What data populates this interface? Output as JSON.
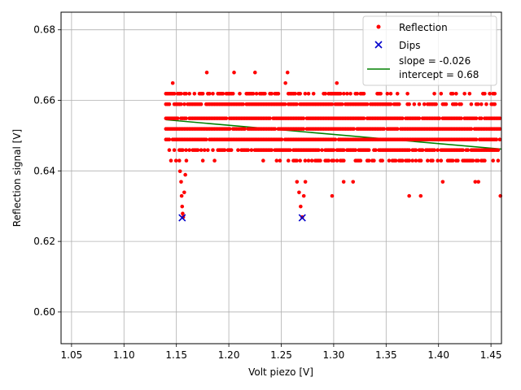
{
  "chart_data": {
    "type": "scatter",
    "title": "",
    "xlabel": "Volt piezo [V]",
    "ylabel": "Reflection signal [V]",
    "xlim": [
      1.04,
      1.46
    ],
    "ylim": [
      0.591,
      0.685
    ],
    "xticks": [
      1.05,
      1.1,
      1.15,
      1.2,
      1.25,
      1.3,
      1.35,
      1.4,
      1.45
    ],
    "xtick_labels": [
      "1.05",
      "1.10",
      "1.15",
      "1.20",
      "1.25",
      "1.30",
      "1.35",
      "1.40",
      "1.45"
    ],
    "yticks": [
      0.6,
      0.62,
      0.64,
      0.66,
      0.68
    ],
    "ytick_labels": [
      "0.60",
      "0.62",
      "0.64",
      "0.66",
      "0.68"
    ],
    "grid": true,
    "legend_position": "top-right",
    "colors": {
      "reflection": "#ff0000",
      "dips": "#0000cc",
      "fit": "#008000"
    },
    "series": [
      {
        "name": "Reflection",
        "kind": "scatter",
        "marker": "dot",
        "x_range": [
          1.14,
          1.46
        ],
        "levels": [
          0.6429,
          0.6459,
          0.6489,
          0.6519,
          0.6549,
          0.6589,
          0.6619
        ],
        "dense_bottom_from": 1.255,
        "dip_points": [
          {
            "x": 1.1535,
            "y": 0.6399
          },
          {
            "x": 1.1545,
            "y": 0.6369
          },
          {
            "x": 1.155,
            "y": 0.6329
          },
          {
            "x": 1.1555,
            "y": 0.6299
          },
          {
            "x": 1.156,
            "y": 0.6279
          },
          {
            "x": 1.1565,
            "y": 0.6269
          },
          {
            "x": 1.1575,
            "y": 0.6339
          },
          {
            "x": 1.1585,
            "y": 0.6389
          },
          {
            "x": 1.1595,
            "y": 0.6429
          },
          {
            "x": 1.265,
            "y": 0.6369
          },
          {
            "x": 1.267,
            "y": 0.6339
          },
          {
            "x": 1.2685,
            "y": 0.6299
          },
          {
            "x": 1.27,
            "y": 0.6269
          },
          {
            "x": 1.2715,
            "y": 0.6329
          },
          {
            "x": 1.273,
            "y": 0.6369
          },
          {
            "x": 1.2985,
            "y": 0.6329
          },
          {
            "x": 1.3095,
            "y": 0.6369
          },
          {
            "x": 1.3185,
            "y": 0.6369
          },
          {
            "x": 1.372,
            "y": 0.6329
          },
          {
            "x": 1.383,
            "y": 0.6329
          },
          {
            "x": 1.404,
            "y": 0.6369
          },
          {
            "x": 1.435,
            "y": 0.6369
          },
          {
            "x": 1.438,
            "y": 0.6369
          },
          {
            "x": 1.459,
            "y": 0.6329
          }
        ],
        "peak_points": [
          {
            "x": 1.1465,
            "y": 0.6649
          },
          {
            "x": 1.179,
            "y": 0.6679
          },
          {
            "x": 1.205,
            "y": 0.6679
          },
          {
            "x": 1.225,
            "y": 0.6679
          },
          {
            "x": 1.256,
            "y": 0.6679
          },
          {
            "x": 1.254,
            "y": 0.6649
          },
          {
            "x": 1.297,
            "y": 0.6619
          },
          {
            "x": 1.303,
            "y": 0.6649
          }
        ]
      },
      {
        "name": "Dips",
        "kind": "scatter",
        "marker": "x",
        "points": [
          {
            "x": 1.1555,
            "y": 0.6267
          },
          {
            "x": 1.27,
            "y": 0.6267
          }
        ]
      },
      {
        "name": "slope = -0.026\nintercept = 0.68",
        "kind": "line",
        "slope": -0.026,
        "intercept": 0.68,
        "x_range": [
          1.14,
          1.46
        ]
      }
    ]
  }
}
